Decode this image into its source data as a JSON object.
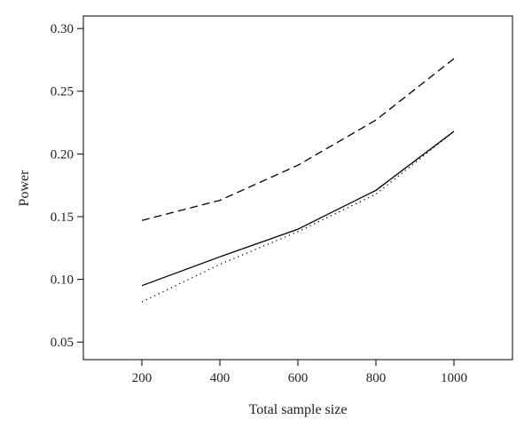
{
  "chart_data": {
    "type": "line",
    "title": "",
    "xlabel": "Total sample size",
    "ylabel": "Power",
    "x": [
      200,
      400,
      600,
      800,
      1000
    ],
    "xlim": [
      50,
      1150
    ],
    "ylim": [
      0.036,
      0.31
    ],
    "xticks": [
      "200",
      "400",
      "600",
      "800",
      "1000"
    ],
    "yticks": [
      "0.05",
      "0.10",
      "0.15",
      "0.20",
      "0.25",
      "0.30"
    ],
    "grid": false,
    "legend": "none",
    "series": [
      {
        "style": "dashed",
        "values": [
          0.147,
          0.163,
          0.191,
          0.227,
          0.276
        ]
      },
      {
        "style": "solid",
        "values": [
          0.095,
          0.118,
          0.14,
          0.171,
          0.218
        ]
      },
      {
        "style": "dotted",
        "values": [
          0.082,
          0.112,
          0.138,
          0.168,
          0.218
        ]
      }
    ]
  }
}
